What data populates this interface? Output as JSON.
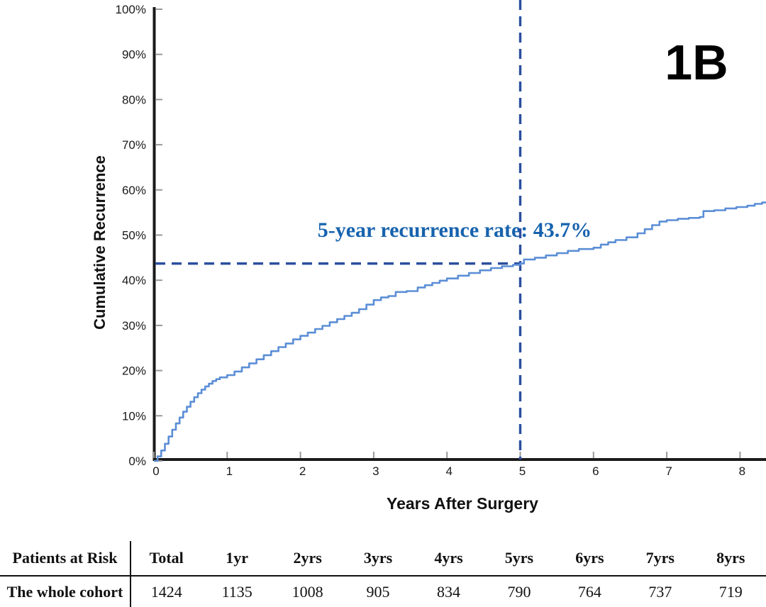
{
  "figure_label": "1B",
  "chart_data": {
    "type": "line",
    "title": "",
    "xlabel": "Years After Surgery",
    "ylabel": "Cumulative Recurrence",
    "x_ticks": [
      "0",
      "1",
      "2",
      "3",
      "4",
      "5",
      "6",
      "7",
      "8"
    ],
    "y_tick_labels": [
      "0%",
      "10%",
      "20%",
      "30%",
      "40%",
      "50%",
      "60%",
      "70%",
      "80%",
      "90%",
      "100%"
    ],
    "xlim": [
      0,
      8.35
    ],
    "ylim": [
      0,
      100
    ],
    "grid": false,
    "legend": "none",
    "annotation": {
      "text": "5-year recurrence rate: 43.7%",
      "x": 5,
      "y": 43.7
    },
    "reference_lines": {
      "h": {
        "y": 43.7,
        "x_from": 0,
        "x_to": 5
      },
      "v": {
        "x": 5,
        "y_from": 0,
        "y_to": 43.7
      }
    },
    "series": [
      {
        "name": "Cumulative recurrence (whole cohort)",
        "points": [
          [
            0,
            0
          ],
          [
            0.05,
            1.0
          ],
          [
            0.1,
            2.3
          ],
          [
            0.15,
            3.8
          ],
          [
            0.2,
            5.4
          ],
          [
            0.25,
            6.9
          ],
          [
            0.3,
            8.3
          ],
          [
            0.35,
            9.6
          ],
          [
            0.4,
            10.9
          ],
          [
            0.45,
            12.0
          ],
          [
            0.5,
            13.1
          ],
          [
            0.55,
            14.1
          ],
          [
            0.6,
            15.0
          ],
          [
            0.65,
            15.8
          ],
          [
            0.7,
            16.5
          ],
          [
            0.75,
            17.1
          ],
          [
            0.8,
            17.7
          ],
          [
            0.85,
            18.1
          ],
          [
            0.9,
            18.5
          ],
          [
            1.0,
            19.0
          ],
          [
            1.1,
            19.8
          ],
          [
            1.2,
            20.7
          ],
          [
            1.3,
            21.6
          ],
          [
            1.4,
            22.5
          ],
          [
            1.5,
            23.4
          ],
          [
            1.6,
            24.3
          ],
          [
            1.7,
            25.2
          ],
          [
            1.8,
            26.0
          ],
          [
            1.9,
            26.9
          ],
          [
            2.0,
            27.7
          ],
          [
            2.1,
            28.4
          ],
          [
            2.2,
            29.2
          ],
          [
            2.3,
            29.9
          ],
          [
            2.4,
            30.7
          ],
          [
            2.5,
            31.4
          ],
          [
            2.6,
            32.1
          ],
          [
            2.7,
            32.8
          ],
          [
            2.8,
            33.6
          ],
          [
            2.9,
            34.6
          ],
          [
            3.0,
            35.6
          ],
          [
            3.1,
            36.2
          ],
          [
            3.2,
            36.5
          ],
          [
            3.3,
            37.4
          ],
          [
            3.45,
            37.6
          ],
          [
            3.6,
            38.4
          ],
          [
            3.7,
            38.9
          ],
          [
            3.8,
            39.4
          ],
          [
            3.9,
            39.9
          ],
          [
            4.0,
            40.4
          ],
          [
            4.15,
            41.0
          ],
          [
            4.3,
            41.6
          ],
          [
            4.45,
            42.2
          ],
          [
            4.6,
            42.7
          ],
          [
            4.75,
            43.1
          ],
          [
            4.9,
            43.4
          ],
          [
            5.0,
            43.7
          ],
          [
            5.05,
            44.6
          ],
          [
            5.2,
            45.0
          ],
          [
            5.35,
            45.5
          ],
          [
            5.5,
            46.0
          ],
          [
            5.65,
            46.5
          ],
          [
            5.8,
            46.9
          ],
          [
            6.0,
            47.2
          ],
          [
            6.1,
            47.9
          ],
          [
            6.2,
            48.4
          ],
          [
            6.3,
            48.9
          ],
          [
            6.45,
            49.5
          ],
          [
            6.6,
            50.4
          ],
          [
            6.7,
            51.3
          ],
          [
            6.8,
            52.2
          ],
          [
            6.9,
            53.0
          ],
          [
            7.0,
            53.3
          ],
          [
            7.15,
            53.6
          ],
          [
            7.3,
            53.8
          ],
          [
            7.45,
            54.0
          ],
          [
            7.5,
            55.3
          ],
          [
            7.65,
            55.5
          ],
          [
            7.8,
            55.9
          ],
          [
            7.95,
            56.2
          ],
          [
            8.1,
            56.5
          ],
          [
            8.2,
            56.9
          ],
          [
            8.3,
            57.2
          ],
          [
            8.35,
            57.4
          ]
        ]
      }
    ]
  },
  "risk_table": {
    "header": [
      "Patients at Risk",
      "Total",
      "1yr",
      "2yrs",
      "3yrs",
      "4yrs",
      "5yrs",
      "6yrs",
      "7yrs",
      "8yrs"
    ],
    "rows": [
      {
        "label": "The whole cohort",
        "values": [
          "1424",
          "1135",
          "1008",
          "905",
          "834",
          "790",
          "764",
          "737",
          "719"
        ]
      }
    ]
  },
  "colors": {
    "curve": "#5b8ed6",
    "reference_line": "#2b4f9f",
    "annotation_text": "#1763ae",
    "axis": "#1a1a1a",
    "tick": "#999999",
    "text": "#111111"
  }
}
